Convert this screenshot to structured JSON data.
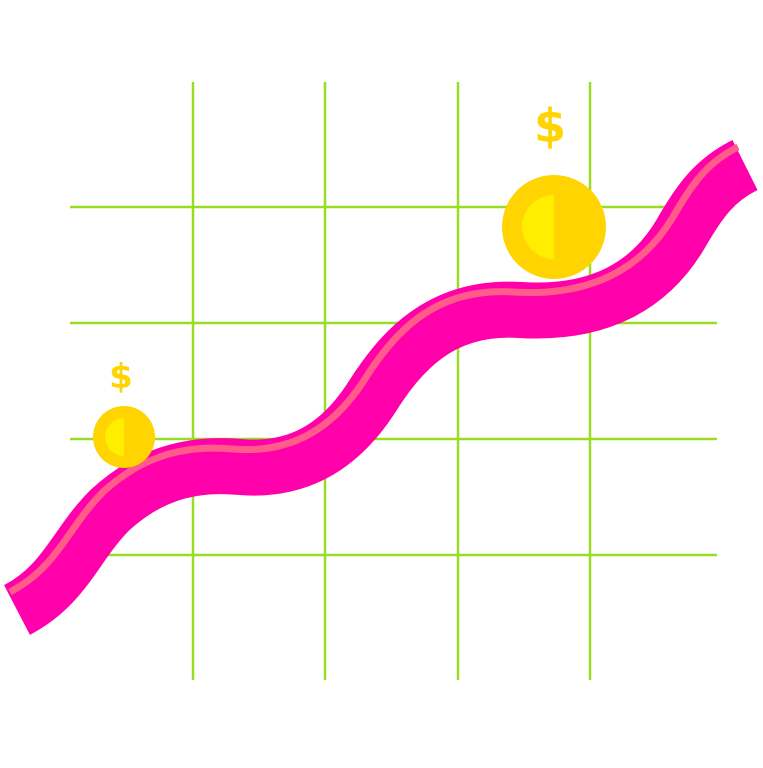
{
  "palette": {
    "background": "#ffffff",
    "grid": "#99dd22",
    "wave_outer": "#ff00aa",
    "wave_highlight": "#ff5c8a",
    "coin_face": "#ffee00",
    "coin_shadow": "#ffd400",
    "dollar": "#ffd400"
  },
  "coins": [
    {
      "name": "small-coin",
      "symbol": "$"
    },
    {
      "name": "large-coin",
      "symbol": "$"
    }
  ],
  "icon_names": {
    "wave": "rising-wave-icon",
    "coin": "coin-icon",
    "dollar": "dollar-sign-icon"
  }
}
